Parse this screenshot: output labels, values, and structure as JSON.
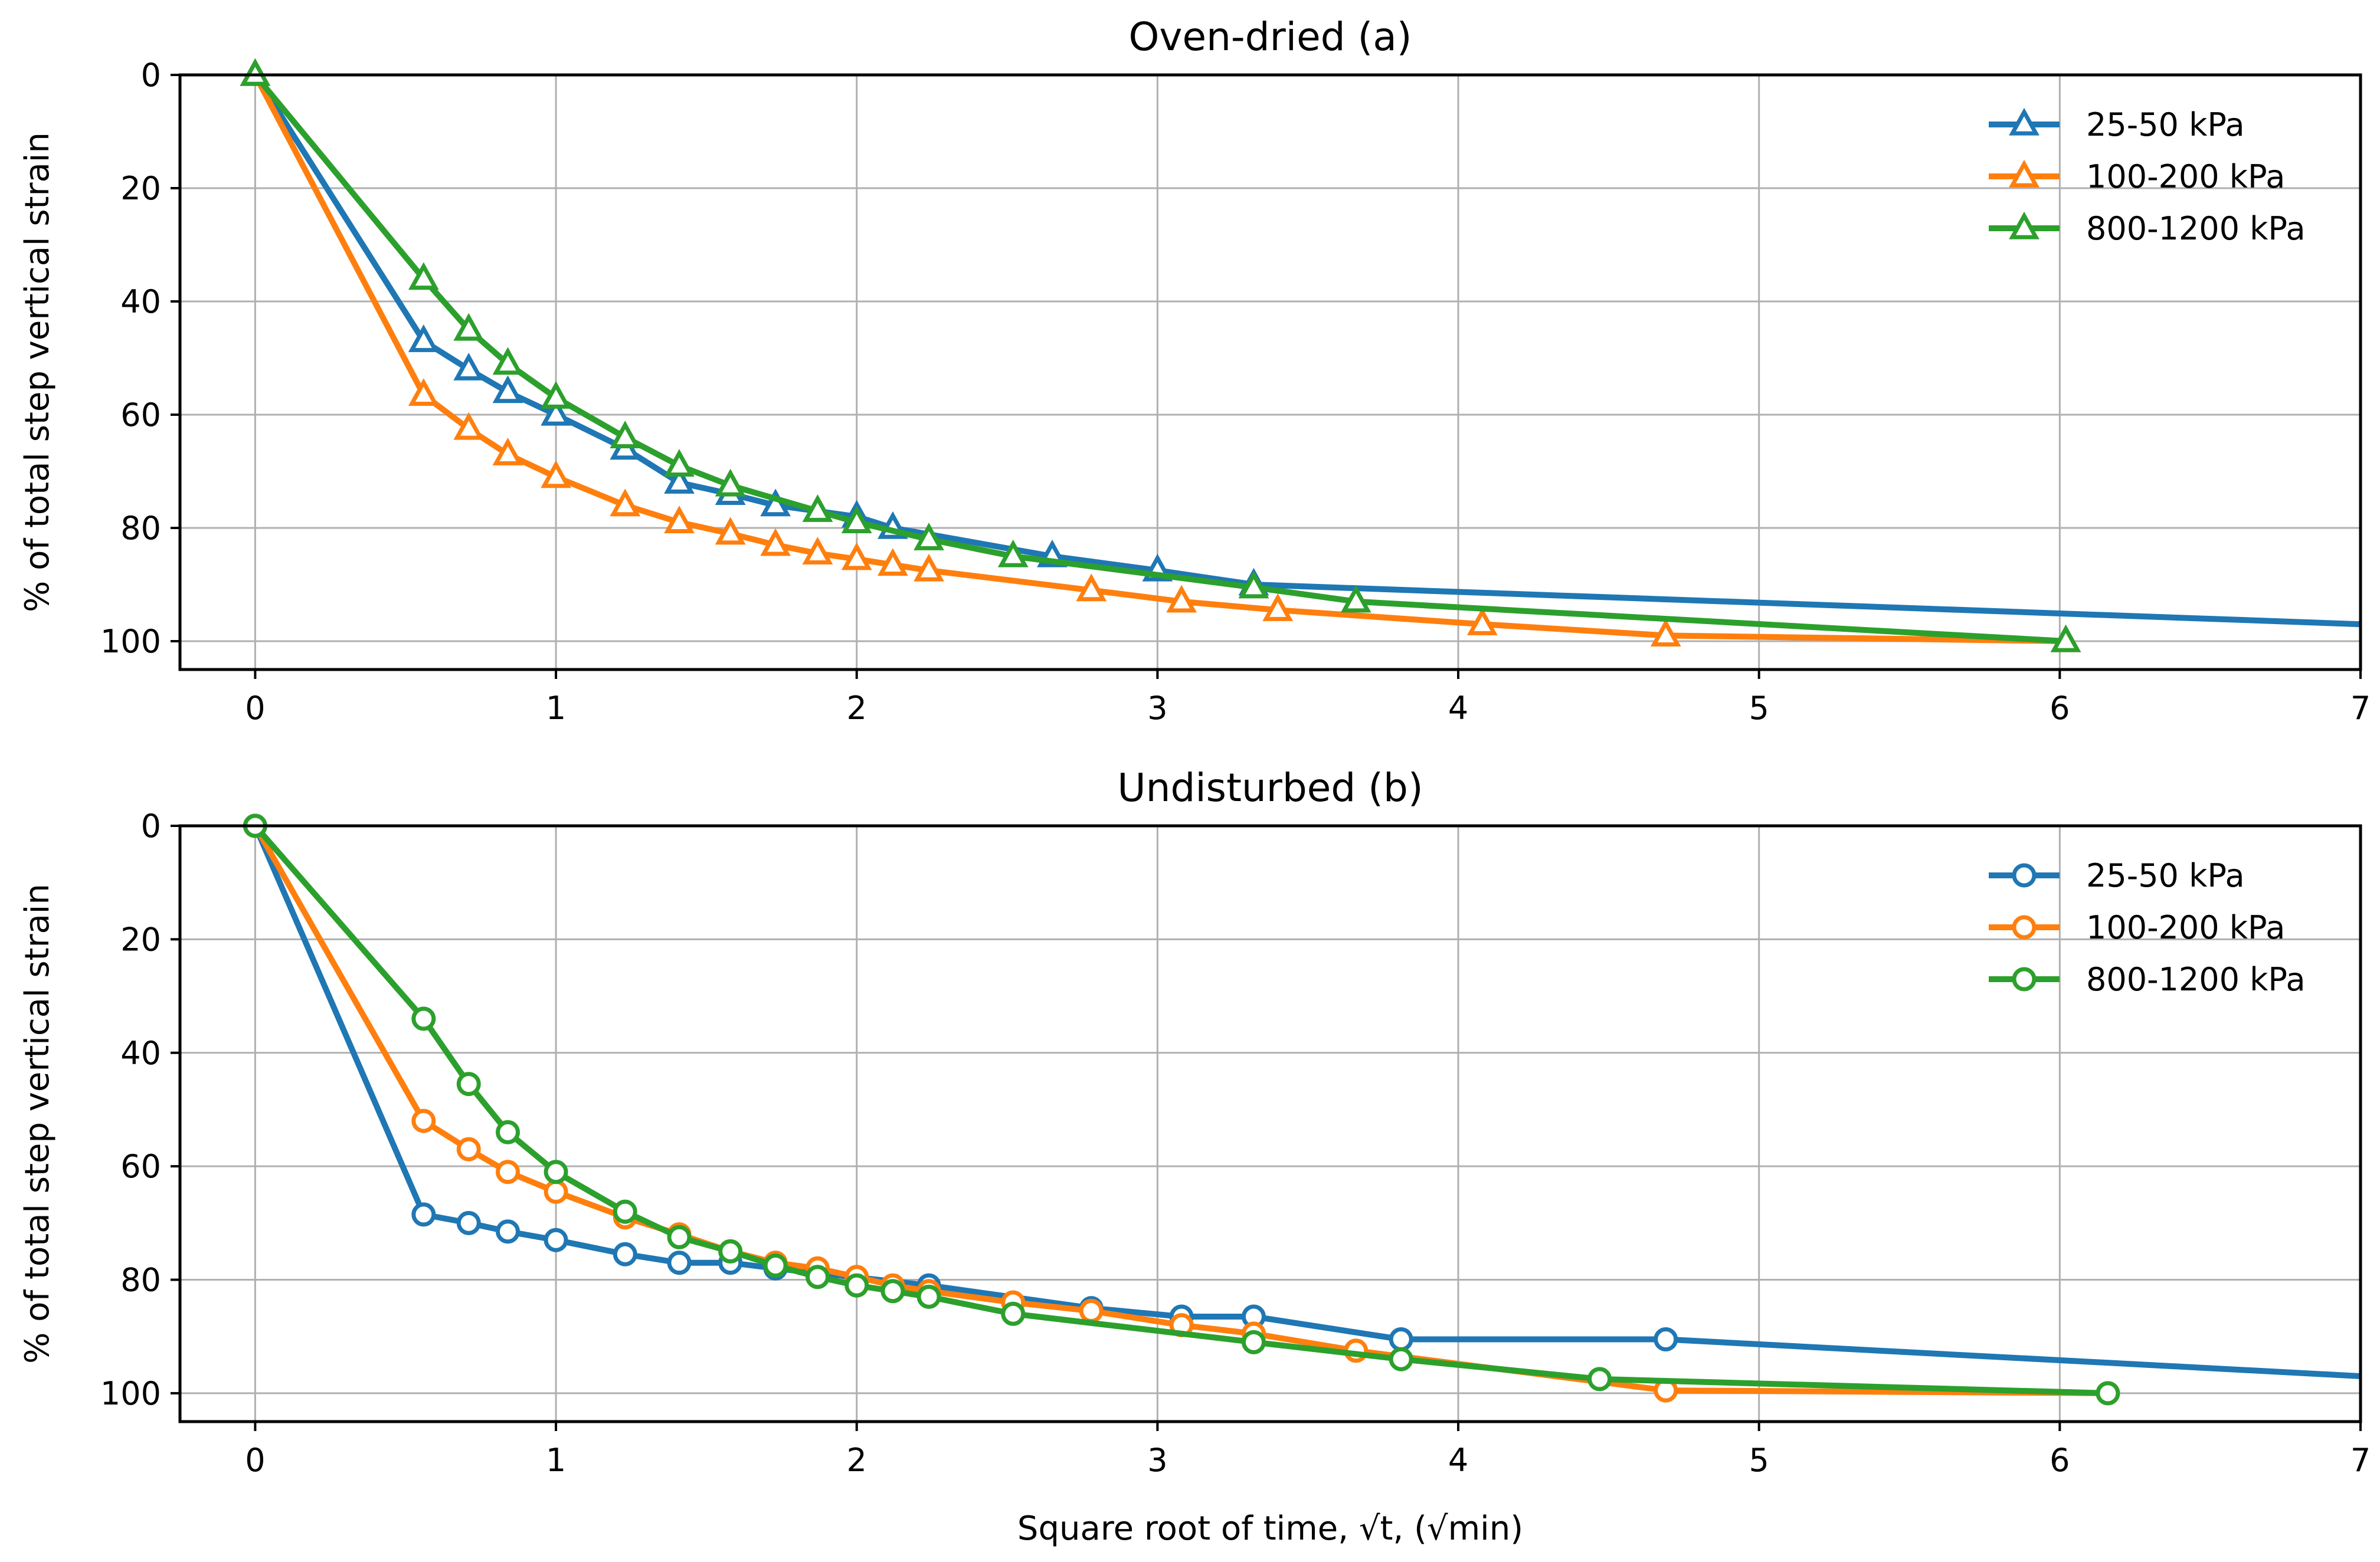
{
  "chart_data": [
    {
      "type": "line",
      "title": "Oven-dried (a)",
      "xlabel": "",
      "ylabel": "% of total step vertical strain",
      "xlim": [
        -0.25,
        7
      ],
      "ylim": [
        105,
        0
      ],
      "y_inverted": true,
      "xticks": [
        "0",
        "1",
        "2",
        "3",
        "4",
        "5",
        "6",
        "7"
      ],
      "yticks": [
        "0",
        "20",
        "40",
        "60",
        "80",
        "100"
      ],
      "grid": true,
      "legend_position": "top-right",
      "marker": "triangle",
      "series": [
        {
          "name": "25-50 kPa",
          "color": "#1f77b4",
          "x": [
            0,
            0.56,
            0.71,
            0.84,
            1.0,
            1.23,
            1.41,
            1.58,
            1.73,
            2.0,
            2.12,
            2.65,
            3.0,
            3.32,
            7.0
          ],
          "y": [
            0,
            47,
            52,
            56,
            60,
            66,
            72,
            74,
            76,
            78,
            80,
            85,
            87.5,
            90,
            97
          ],
          "markers": [
            true,
            true,
            true,
            true,
            true,
            true,
            true,
            true,
            true,
            true,
            true,
            true,
            true,
            true,
            false
          ]
        },
        {
          "name": "100-200 kPa",
          "color": "#ff7f0e",
          "x": [
            0,
            0.56,
            0.71,
            0.84,
            1.0,
            1.23,
            1.41,
            1.58,
            1.73,
            1.87,
            2.0,
            2.12,
            2.24,
            2.78,
            3.08,
            3.4,
            4.08,
            4.69,
            6.02
          ],
          "y": [
            0,
            56.5,
            62.5,
            67,
            71,
            76,
            79,
            81,
            83,
            84.5,
            85.5,
            86.5,
            87.5,
            91,
            93,
            94.5,
            97,
            99,
            100
          ],
          "markers": [
            true,
            true,
            true,
            true,
            true,
            true,
            true,
            true,
            true,
            true,
            true,
            true,
            true,
            true,
            true,
            true,
            true,
            true,
            true
          ]
        },
        {
          "name": "800-1200 kPa",
          "color": "#2ca02c",
          "x": [
            0,
            0.56,
            0.71,
            0.84,
            1.0,
            1.23,
            1.41,
            1.58,
            1.87,
            2.0,
            2.24,
            2.52,
            3.32,
            3.66,
            6.02
          ],
          "y": [
            0,
            36,
            45,
            51,
            57,
            64,
            69,
            72.5,
            77,
            79,
            82,
            85,
            90.5,
            93,
            100
          ],
          "markers": [
            true,
            true,
            true,
            true,
            true,
            true,
            true,
            true,
            true,
            true,
            true,
            true,
            true,
            true,
            true
          ]
        }
      ]
    },
    {
      "type": "line",
      "title": "Undisturbed (b)",
      "xlabel": "Square root of time, √t, (√min)",
      "ylabel": "% of total step vertical strain",
      "xlim": [
        -0.25,
        7
      ],
      "ylim": [
        105,
        0
      ],
      "y_inverted": true,
      "xticks": [
        "0",
        "1",
        "2",
        "3",
        "4",
        "5",
        "6",
        "7"
      ],
      "yticks": [
        "0",
        "20",
        "40",
        "60",
        "80",
        "100"
      ],
      "grid": true,
      "legend_position": "top-right",
      "marker": "circle",
      "series": [
        {
          "name": "25-50 kPa",
          "color": "#1f77b4",
          "x": [
            0,
            0.56,
            0.71,
            0.84,
            1.0,
            1.23,
            1.41,
            1.58,
            1.73,
            2.24,
            2.78,
            3.08,
            3.32,
            3.81,
            4.69,
            7.0
          ],
          "y": [
            0,
            68.5,
            70,
            71.5,
            73,
            75.5,
            77,
            77,
            78,
            81,
            85,
            86.5,
            86.5,
            90.5,
            90.5,
            97
          ],
          "markers": [
            true,
            true,
            true,
            true,
            true,
            true,
            true,
            true,
            true,
            true,
            true,
            true,
            true,
            true,
            true,
            false
          ]
        },
        {
          "name": "100-200 kPa",
          "color": "#ff7f0e",
          "x": [
            0,
            0.56,
            0.71,
            0.84,
            1.0,
            1.23,
            1.41,
            1.58,
            1.73,
            1.87,
            2.0,
            2.12,
            2.24,
            2.52,
            2.78,
            3.08,
            3.32,
            3.66,
            4.69,
            6.16
          ],
          "y": [
            0,
            52,
            57,
            61,
            64.5,
            69,
            72,
            75,
            77,
            78,
            79.5,
            81,
            82,
            84,
            85.5,
            88,
            89.5,
            92.5,
            99.5,
            100
          ],
          "markers": [
            true,
            true,
            true,
            true,
            true,
            true,
            true,
            true,
            true,
            true,
            true,
            true,
            true,
            true,
            true,
            true,
            true,
            true,
            true,
            true
          ]
        },
        {
          "name": "800-1200 kPa",
          "color": "#2ca02c",
          "x": [
            0,
            0.56,
            0.71,
            0.84,
            1.0,
            1.23,
            1.41,
            1.58,
            1.73,
            1.87,
            2.0,
            2.12,
            2.24,
            2.52,
            3.32,
            3.81,
            4.47,
            6.16
          ],
          "y": [
            0,
            34,
            45.5,
            54,
            61,
            68,
            72.5,
            75,
            77.5,
            79.5,
            81,
            82,
            83,
            86,
            91,
            94,
            97.5,
            100
          ],
          "markers": [
            true,
            true,
            true,
            true,
            true,
            true,
            true,
            true,
            true,
            true,
            true,
            true,
            true,
            true,
            true,
            true,
            true,
            true
          ]
        }
      ]
    }
  ]
}
